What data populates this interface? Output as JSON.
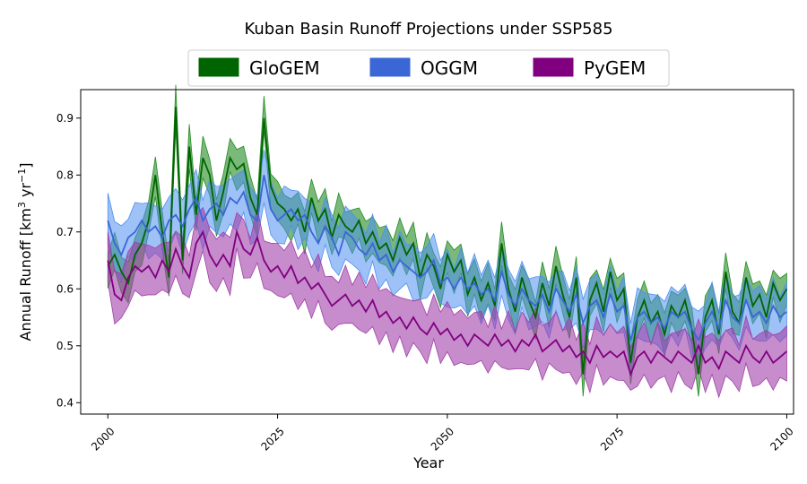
{
  "chart_data": {
    "type": "area",
    "title": "Kuban Basin Runoff Projections under SSP585",
    "xlabel": "Year",
    "ylabel_main": "Annual Runoff [km",
    "ylabel_sup1": "3",
    "ylabel_mid": " yr",
    "ylabel_sup2": "−1",
    "ylabel_end": "]",
    "xlim": [
      1996,
      2101
    ],
    "ylim": [
      0.38,
      0.95
    ],
    "xticks": [
      2000,
      2025,
      2050,
      2075,
      2100
    ],
    "yticks": [
      0.4,
      0.5,
      0.6,
      0.7,
      0.8,
      0.9
    ],
    "legend_position": "top-center",
    "series": [
      {
        "name": "GloGEM",
        "line_color": "#006400",
        "fill_color": "#228B22",
        "anchors": [
          [
            2000,
            0.64
          ],
          [
            2001,
            0.66
          ],
          [
            2002,
            0.63
          ],
          [
            2003,
            0.61
          ],
          [
            2004,
            0.66
          ],
          [
            2005,
            0.68
          ],
          [
            2006,
            0.72
          ],
          [
            2007,
            0.8
          ],
          [
            2008,
            0.7
          ],
          [
            2009,
            0.62
          ],
          [
            2010,
            0.92
          ],
          [
            2011,
            0.65
          ],
          [
            2012,
            0.85
          ],
          [
            2013,
            0.73
          ],
          [
            2014,
            0.83
          ],
          [
            2015,
            0.8
          ],
          [
            2016,
            0.72
          ],
          [
            2017,
            0.77
          ],
          [
            2018,
            0.83
          ],
          [
            2019,
            0.81
          ],
          [
            2020,
            0.82
          ],
          [
            2021,
            0.76
          ],
          [
            2022,
            0.73
          ],
          [
            2023,
            0.9
          ],
          [
            2024,
            0.78
          ],
          [
            2025,
            0.75
          ],
          [
            2026,
            0.74
          ],
          [
            2027,
            0.72
          ],
          [
            2028,
            0.74
          ],
          [
            2029,
            0.7
          ],
          [
            2030,
            0.76
          ],
          [
            2031,
            0.72
          ],
          [
            2032,
            0.74
          ],
          [
            2033,
            0.69
          ],
          [
            2034,
            0.73
          ],
          [
            2035,
            0.71
          ],
          [
            2036,
            0.7
          ],
          [
            2037,
            0.72
          ],
          [
            2038,
            0.68
          ],
          [
            2039,
            0.7
          ],
          [
            2040,
            0.67
          ],
          [
            2041,
            0.68
          ],
          [
            2042,
            0.65
          ],
          [
            2043,
            0.69
          ],
          [
            2044,
            0.66
          ],
          [
            2045,
            0.68
          ],
          [
            2046,
            0.62
          ],
          [
            2047,
            0.66
          ],
          [
            2048,
            0.64
          ],
          [
            2049,
            0.6
          ],
          [
            2050,
            0.66
          ],
          [
            2051,
            0.63
          ],
          [
            2052,
            0.65
          ],
          [
            2053,
            0.59
          ],
          [
            2054,
            0.62
          ],
          [
            2055,
            0.58
          ],
          [
            2056,
            0.61
          ],
          [
            2057,
            0.57
          ],
          [
            2058,
            0.68
          ],
          [
            2059,
            0.6
          ],
          [
            2060,
            0.56
          ],
          [
            2061,
            0.62
          ],
          [
            2062,
            0.58
          ],
          [
            2063,
            0.55
          ],
          [
            2064,
            0.61
          ],
          [
            2065,
            0.57
          ],
          [
            2066,
            0.64
          ],
          [
            2067,
            0.59
          ],
          [
            2068,
            0.55
          ],
          [
            2069,
            0.62
          ],
          [
            2070,
            0.45
          ],
          [
            2071,
            0.58
          ],
          [
            2072,
            0.61
          ],
          [
            2073,
            0.56
          ],
          [
            2074,
            0.63
          ],
          [
            2075,
            0.58
          ],
          [
            2076,
            0.6
          ],
          [
            2077,
            0.47
          ],
          [
            2078,
            0.55
          ],
          [
            2079,
            0.58
          ],
          [
            2080,
            0.54
          ],
          [
            2081,
            0.56
          ],
          [
            2082,
            0.52
          ],
          [
            2083,
            0.57
          ],
          [
            2084,
            0.55
          ],
          [
            2085,
            0.58
          ],
          [
            2086,
            0.53
          ],
          [
            2087,
            0.45
          ],
          [
            2088,
            0.55
          ],
          [
            2089,
            0.58
          ],
          [
            2090,
            0.52
          ],
          [
            2091,
            0.63
          ],
          [
            2092,
            0.56
          ],
          [
            2093,
            0.54
          ],
          [
            2094,
            0.62
          ],
          [
            2095,
            0.57
          ],
          [
            2096,
            0.59
          ],
          [
            2097,
            0.55
          ],
          [
            2098,
            0.61
          ],
          [
            2099,
            0.58
          ],
          [
            2100,
            0.6
          ]
        ],
        "spread": 0.03
      },
      {
        "name": "OGGM",
        "line_color": "#3A66D6",
        "fill_color": "#4E8FF0",
        "anchors": [
          [
            2000,
            0.72
          ],
          [
            2001,
            0.68
          ],
          [
            2002,
            0.66
          ],
          [
            2003,
            0.69
          ],
          [
            2004,
            0.7
          ],
          [
            2005,
            0.72
          ],
          [
            2006,
            0.7
          ],
          [
            2007,
            0.71
          ],
          [
            2008,
            0.69
          ],
          [
            2009,
            0.72
          ],
          [
            2010,
            0.73
          ],
          [
            2011,
            0.71
          ],
          [
            2012,
            0.74
          ],
          [
            2013,
            0.76
          ],
          [
            2014,
            0.72
          ],
          [
            2015,
            0.74
          ],
          [
            2016,
            0.75
          ],
          [
            2017,
            0.73
          ],
          [
            2018,
            0.76
          ],
          [
            2019,
            0.75
          ],
          [
            2020,
            0.77
          ],
          [
            2021,
            0.73
          ],
          [
            2022,
            0.72
          ],
          [
            2023,
            0.8
          ],
          [
            2024,
            0.74
          ],
          [
            2025,
            0.72
          ],
          [
            2026,
            0.73
          ],
          [
            2027,
            0.74
          ],
          [
            2028,
            0.72
          ],
          [
            2029,
            0.73
          ],
          [
            2030,
            0.7
          ],
          [
            2031,
            0.68
          ],
          [
            2032,
            0.71
          ],
          [
            2033,
            0.69
          ],
          [
            2034,
            0.66
          ],
          [
            2035,
            0.7
          ],
          [
            2036,
            0.69
          ],
          [
            2037,
            0.67
          ],
          [
            2038,
            0.66
          ],
          [
            2039,
            0.68
          ],
          [
            2040,
            0.65
          ],
          [
            2041,
            0.66
          ],
          [
            2042,
            0.63
          ],
          [
            2043,
            0.65
          ],
          [
            2044,
            0.64
          ],
          [
            2045,
            0.63
          ],
          [
            2046,
            0.62
          ],
          [
            2047,
            0.63
          ],
          [
            2048,
            0.65
          ],
          [
            2049,
            0.61
          ],
          [
            2050,
            0.62
          ],
          [
            2051,
            0.6
          ],
          [
            2052,
            0.62
          ],
          [
            2053,
            0.6
          ],
          [
            2054,
            0.61
          ],
          [
            2055,
            0.59
          ],
          [
            2056,
            0.6
          ],
          [
            2057,
            0.58
          ],
          [
            2058,
            0.63
          ],
          [
            2059,
            0.59
          ],
          [
            2060,
            0.57
          ],
          [
            2061,
            0.6
          ],
          [
            2062,
            0.58
          ],
          [
            2063,
            0.57
          ],
          [
            2064,
            0.59
          ],
          [
            2065,
            0.56
          ],
          [
            2066,
            0.6
          ],
          [
            2067,
            0.58
          ],
          [
            2068,
            0.56
          ],
          [
            2069,
            0.59
          ],
          [
            2070,
            0.54
          ],
          [
            2071,
            0.57
          ],
          [
            2072,
            0.58
          ],
          [
            2073,
            0.55
          ],
          [
            2074,
            0.59
          ],
          [
            2075,
            0.56
          ],
          [
            2076,
            0.57
          ],
          [
            2077,
            0.51
          ],
          [
            2078,
            0.55
          ],
          [
            2079,
            0.56
          ],
          [
            2080,
            0.54
          ],
          [
            2081,
            0.55
          ],
          [
            2082,
            0.53
          ],
          [
            2083,
            0.56
          ],
          [
            2084,
            0.55
          ],
          [
            2085,
            0.56
          ],
          [
            2086,
            0.53
          ],
          [
            2087,
            0.51
          ],
          [
            2088,
            0.54
          ],
          [
            2089,
            0.56
          ],
          [
            2090,
            0.53
          ],
          [
            2091,
            0.58
          ],
          [
            2092,
            0.55
          ],
          [
            2093,
            0.54
          ],
          [
            2094,
            0.58
          ],
          [
            2095,
            0.55
          ],
          [
            2096,
            0.56
          ],
          [
            2097,
            0.54
          ],
          [
            2098,
            0.57
          ],
          [
            2099,
            0.55
          ],
          [
            2100,
            0.56
          ]
        ],
        "spread": 0.04
      },
      {
        "name": "PyGEM",
        "line_color": "#800080",
        "fill_color": "#A040A8",
        "anchors": [
          [
            2000,
            0.65
          ],
          [
            2001,
            0.59
          ],
          [
            2002,
            0.58
          ],
          [
            2003,
            0.62
          ],
          [
            2004,
            0.64
          ],
          [
            2005,
            0.63
          ],
          [
            2006,
            0.64
          ],
          [
            2007,
            0.62
          ],
          [
            2008,
            0.65
          ],
          [
            2009,
            0.63
          ],
          [
            2010,
            0.67
          ],
          [
            2011,
            0.64
          ],
          [
            2012,
            0.62
          ],
          [
            2013,
            0.68
          ],
          [
            2014,
            0.7
          ],
          [
            2015,
            0.66
          ],
          [
            2016,
            0.64
          ],
          [
            2017,
            0.66
          ],
          [
            2018,
            0.64
          ],
          [
            2019,
            0.7
          ],
          [
            2020,
            0.67
          ],
          [
            2021,
            0.66
          ],
          [
            2022,
            0.69
          ],
          [
            2023,
            0.65
          ],
          [
            2024,
            0.63
          ],
          [
            2025,
            0.64
          ],
          [
            2026,
            0.62
          ],
          [
            2027,
            0.64
          ],
          [
            2028,
            0.61
          ],
          [
            2029,
            0.62
          ],
          [
            2030,
            0.6
          ],
          [
            2031,
            0.61
          ],
          [
            2032,
            0.59
          ],
          [
            2033,
            0.57
          ],
          [
            2034,
            0.58
          ],
          [
            2035,
            0.59
          ],
          [
            2036,
            0.57
          ],
          [
            2037,
            0.58
          ],
          [
            2038,
            0.56
          ],
          [
            2039,
            0.58
          ],
          [
            2040,
            0.55
          ],
          [
            2041,
            0.56
          ],
          [
            2042,
            0.54
          ],
          [
            2043,
            0.55
          ],
          [
            2044,
            0.53
          ],
          [
            2045,
            0.55
          ],
          [
            2046,
            0.53
          ],
          [
            2047,
            0.52
          ],
          [
            2048,
            0.54
          ],
          [
            2049,
            0.52
          ],
          [
            2050,
            0.53
          ],
          [
            2051,
            0.51
          ],
          [
            2052,
            0.52
          ],
          [
            2053,
            0.5
          ],
          [
            2054,
            0.52
          ],
          [
            2055,
            0.51
          ],
          [
            2056,
            0.5
          ],
          [
            2057,
            0.52
          ],
          [
            2058,
            0.5
          ],
          [
            2059,
            0.51
          ],
          [
            2060,
            0.49
          ],
          [
            2061,
            0.51
          ],
          [
            2062,
            0.5
          ],
          [
            2063,
            0.52
          ],
          [
            2064,
            0.49
          ],
          [
            2065,
            0.5
          ],
          [
            2066,
            0.51
          ],
          [
            2067,
            0.49
          ],
          [
            2068,
            0.5
          ],
          [
            2069,
            0.48
          ],
          [
            2070,
            0.49
          ],
          [
            2071,
            0.47
          ],
          [
            2072,
            0.5
          ],
          [
            2073,
            0.48
          ],
          [
            2074,
            0.49
          ],
          [
            2075,
            0.48
          ],
          [
            2076,
            0.49
          ],
          [
            2077,
            0.45
          ],
          [
            2078,
            0.48
          ],
          [
            2079,
            0.49
          ],
          [
            2080,
            0.47
          ],
          [
            2081,
            0.49
          ],
          [
            2082,
            0.48
          ],
          [
            2083,
            0.47
          ],
          [
            2084,
            0.49
          ],
          [
            2085,
            0.48
          ],
          [
            2086,
            0.47
          ],
          [
            2087,
            0.5
          ],
          [
            2088,
            0.47
          ],
          [
            2089,
            0.48
          ],
          [
            2090,
            0.46
          ],
          [
            2091,
            0.49
          ],
          [
            2092,
            0.48
          ],
          [
            2093,
            0.47
          ],
          [
            2094,
            0.5
          ],
          [
            2095,
            0.48
          ],
          [
            2096,
            0.47
          ],
          [
            2097,
            0.49
          ],
          [
            2098,
            0.47
          ],
          [
            2099,
            0.48
          ],
          [
            2100,
            0.49
          ]
        ],
        "spread": 0.04
      }
    ]
  }
}
